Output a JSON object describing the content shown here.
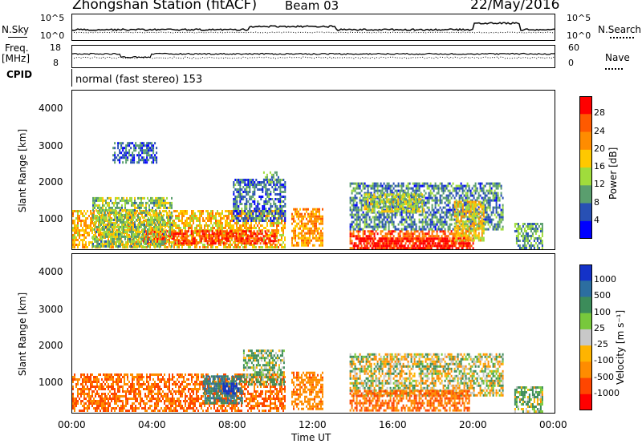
{
  "header": {
    "station": "Zhongshan Station (fitACF)",
    "beam": "Beam 03",
    "date": "22/May/2016"
  },
  "top_panels": {
    "nsky_label": "N.Sky",
    "nsearch_label": "N.Search",
    "freq_label": "Freq.",
    "freq_unit": "[MHz]",
    "nave_label": "Nave",
    "cpid_label": "CPID",
    "cpid_text": "normal (fast stereo) 153",
    "noise_ticks_left": [
      "10^5",
      "10^0"
    ],
    "noise_ticks_right": [
      "10^5",
      "10^0"
    ],
    "freq_ticks": [
      "18",
      "8"
    ],
    "nave_ticks": [
      "60",
      "0"
    ]
  },
  "axes": {
    "y_label": "Slant Range [km]",
    "x_label": "Time UT",
    "y_ticks": [
      "4000",
      "3000",
      "2000",
      "1000"
    ],
    "x_ticks": [
      "00:00",
      "04:00",
      "08:00",
      "12:00",
      "16:00",
      "20:00",
      "00:00"
    ]
  },
  "colorbars": {
    "power": {
      "label": "Power [dB]",
      "ticks": [
        "28",
        "24",
        "20",
        "16",
        "12",
        "8",
        "4"
      ],
      "colors": [
        "#ff0000",
        "#ff5a00",
        "#ff8c00",
        "#ffc800",
        "#a0dc3c",
        "#5a9e6e",
        "#2850b4",
        "#0000ff"
      ]
    },
    "velocity": {
      "label": "Velocity [m s⁻¹]",
      "ticks": [
        "1000",
        "500",
        "100",
        "25",
        "-25",
        "-100",
        "-500",
        "-1000"
      ],
      "colors": [
        "#1432c8",
        "#2c6ea0",
        "#3c8c5a",
        "#78c83c",
        "#c8c8c8",
        "#ffb400",
        "#ff8c00",
        "#ff4600",
        "#ff0000"
      ]
    }
  },
  "chart_data": [
    {
      "type": "heatmap",
      "name": "power",
      "x_range_hours": [
        0,
        24
      ],
      "y_range_km": [
        180,
        4500
      ],
      "clim": [
        0,
        30
      ],
      "blobs": [
        {
          "t0": 0.0,
          "t1": 10.6,
          "r0": 220,
          "r1": 1250,
          "level": 18
        },
        {
          "t0": 3.5,
          "t1": 10.2,
          "r0": 280,
          "r1": 700,
          "level": 27
        },
        {
          "t0": 1.0,
          "t1": 5.0,
          "r0": 250,
          "r1": 1600,
          "level": 12
        },
        {
          "t0": 8.0,
          "t1": 10.6,
          "r0": 900,
          "r1": 2100,
          "level": 7
        },
        {
          "t0": 10.9,
          "t1": 12.5,
          "r0": 250,
          "r1": 1300,
          "level": 20
        },
        {
          "t0": 13.8,
          "t1": 19.8,
          "r0": 200,
          "r1": 700,
          "level": 24
        },
        {
          "t0": 14.0,
          "t1": 20.0,
          "r0": 200,
          "r1": 500,
          "level": 29
        },
        {
          "t0": 13.8,
          "t1": 21.5,
          "r0": 700,
          "r1": 2000,
          "level": 8
        },
        {
          "t0": 14.5,
          "t1": 17.5,
          "r0": 1200,
          "r1": 1700,
          "level": 14
        },
        {
          "t0": 19.0,
          "t1": 20.5,
          "r0": 400,
          "r1": 1500,
          "level": 17
        },
        {
          "t0": 22.0,
          "t1": 23.4,
          "r0": 200,
          "r1": 900,
          "level": 10
        },
        {
          "t0": 2.0,
          "t1": 4.2,
          "r0": 2500,
          "r1": 3100,
          "level": 6
        },
        {
          "t0": 9.5,
          "t1": 10.3,
          "r0": 2000,
          "r1": 2300,
          "level": 10
        }
      ]
    },
    {
      "type": "heatmap",
      "name": "velocity",
      "x_range_hours": [
        0,
        24
      ],
      "y_range_km": [
        180,
        4500
      ],
      "clim": [
        -1000,
        1000
      ],
      "blobs": [
        {
          "t0": 0.0,
          "t1": 10.6,
          "r0": 220,
          "r1": 1250,
          "level": -300
        },
        {
          "t0": 6.5,
          "t1": 8.5,
          "r0": 400,
          "r1": 1200,
          "level": 300
        },
        {
          "t0": 7.5,
          "t1": 8.3,
          "r0": 700,
          "r1": 1000,
          "level": 800
        },
        {
          "t0": 8.5,
          "t1": 10.6,
          "r0": 900,
          "r1": 1900,
          "level": 60
        },
        {
          "t0": 10.9,
          "t1": 12.5,
          "r0": 250,
          "r1": 1300,
          "level": -200
        },
        {
          "t0": 13.8,
          "t1": 21.5,
          "r0": 600,
          "r1": 1800,
          "level": 0
        },
        {
          "t0": 13.8,
          "t1": 19.8,
          "r0": 200,
          "r1": 800,
          "level": -300
        },
        {
          "t0": 22.0,
          "t1": 23.4,
          "r0": 200,
          "r1": 900,
          "level": 60
        }
      ]
    }
  ]
}
